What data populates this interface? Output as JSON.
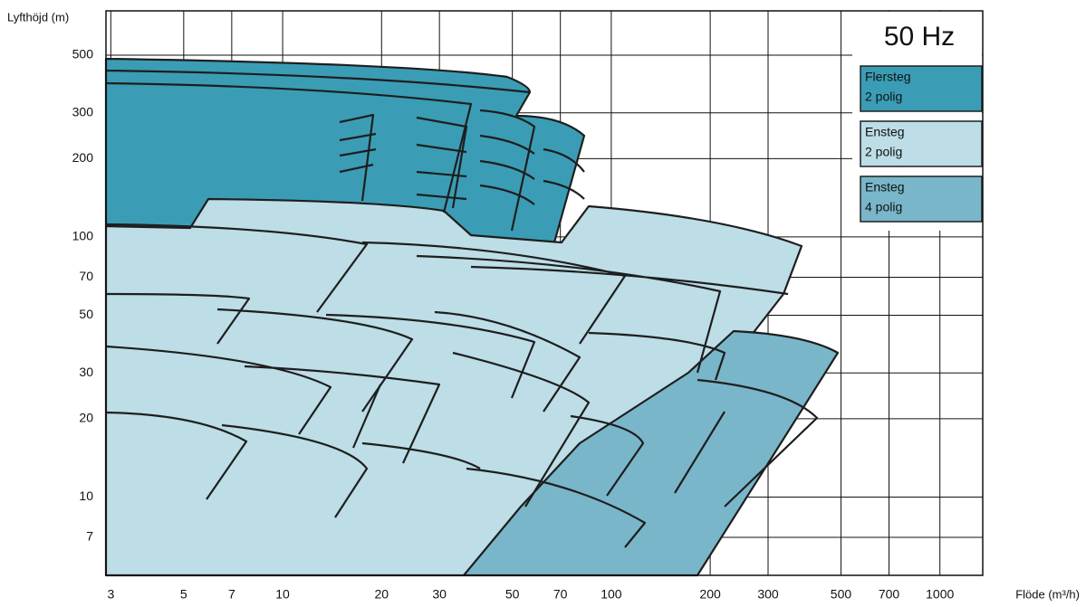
{
  "chart_data": {
    "type": "pump-range",
    "title": "50 Hz",
    "ylabel": "Lyfthöjd (m)",
    "xlabel": "Flöde (m³/h)",
    "log_x": true,
    "log_y": true,
    "grid": true,
    "xlim": [
      2.9,
      1350
    ],
    "ylim": [
      5,
      740
    ],
    "xticks": [
      3,
      5,
      7,
      10,
      20,
      30,
      50,
      70,
      100,
      200,
      300,
      500,
      700,
      1000
    ],
    "yticks": [
      7,
      10,
      20,
      30,
      50,
      70,
      100,
      200,
      300,
      500
    ],
    "legend_position": "upper right",
    "legend": [
      {
        "lines": [
          "Flersteg",
          "2 polig"
        ],
        "color": "#3a9db5"
      },
      {
        "lines": [
          "Ensteg",
          "2 polig"
        ],
        "color": "#bddde7"
      },
      {
        "lines": [
          "Ensteg",
          "4 polig"
        ],
        "color": "#79b6c9"
      }
    ]
  }
}
